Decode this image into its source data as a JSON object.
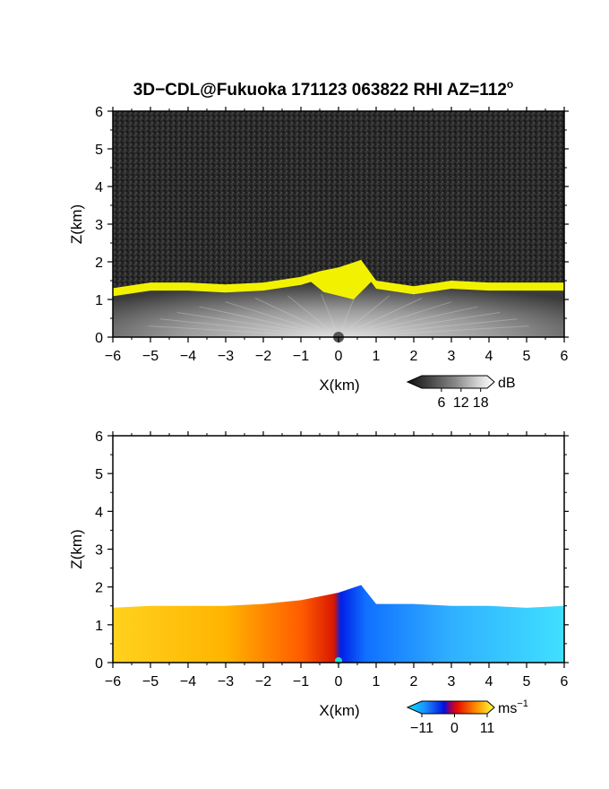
{
  "figure": {
    "title": "3D−CDL@Fukuoka 171123 063822 RHI AZ=112",
    "title_sup": "o"
  },
  "chart_data": [
    {
      "type": "heatmap",
      "variable": "reflectivity",
      "xlabel": "X(km)",
      "ylabel": "Z(km)",
      "xlim": [
        -6,
        6
      ],
      "ylim": [
        0,
        6
      ],
      "xticks": [
        "−6",
        "−5",
        "−4",
        "−3",
        "−2",
        "−1",
        "0",
        "1",
        "2",
        "3",
        "4",
        "5",
        "6"
      ],
      "yticks": [
        "0",
        "1",
        "2",
        "3",
        "4",
        "5",
        "6"
      ],
      "colorbar": {
        "unit": "dB",
        "ticks": [
          "6",
          "12",
          "18"
        ],
        "range": [
          0,
          20
        ]
      },
      "echo_top_km": [
        {
          "x": -6.0,
          "z": 1.3
        },
        {
          "x": -5.0,
          "z": 1.45
        },
        {
          "x": -4.0,
          "z": 1.45
        },
        {
          "x": -3.0,
          "z": 1.4
        },
        {
          "x": -2.0,
          "z": 1.45
        },
        {
          "x": -1.0,
          "z": 1.6
        },
        {
          "x": -0.5,
          "z": 1.75
        },
        {
          "x": 0.0,
          "z": 1.85
        },
        {
          "x": 0.3,
          "z": 1.95
        },
        {
          "x": 0.6,
          "z": 2.05
        },
        {
          "x": 1.0,
          "z": 1.5
        },
        {
          "x": 2.0,
          "z": 1.35
        },
        {
          "x": 3.0,
          "z": 1.5
        },
        {
          "x": 4.0,
          "z": 1.45
        },
        {
          "x": 5.0,
          "z": 1.45
        },
        {
          "x": 6.0,
          "z": 1.45
        }
      ]
    },
    {
      "type": "heatmap",
      "variable": "radial_velocity",
      "xlabel": "X(km)",
      "ylabel": "Z(km)",
      "xlim": [
        -6,
        6
      ],
      "ylim": [
        0,
        6
      ],
      "xticks": [
        "−6",
        "−5",
        "−4",
        "−3",
        "−2",
        "−1",
        "0",
        "1",
        "2",
        "3",
        "4",
        "5",
        "6"
      ],
      "yticks": [
        "0",
        "1",
        "2",
        "3",
        "4",
        "5",
        "6"
      ],
      "colorbar": {
        "unit": "ms",
        "unit_sup": "−1",
        "ticks": [
          "−11",
          "0",
          "11"
        ],
        "range": [
          -11,
          11
        ]
      },
      "sign_change_x_km": 0.0,
      "echo_top_km": [
        {
          "x": -6.0,
          "z": 1.45
        },
        {
          "x": -5.0,
          "z": 1.5
        },
        {
          "x": -4.0,
          "z": 1.5
        },
        {
          "x": -3.0,
          "z": 1.5
        },
        {
          "x": -2.0,
          "z": 1.55
        },
        {
          "x": -1.0,
          "z": 1.65
        },
        {
          "x": -0.5,
          "z": 1.75
        },
        {
          "x": 0.0,
          "z": 1.85
        },
        {
          "x": 0.3,
          "z": 1.95
        },
        {
          "x": 0.6,
          "z": 2.05
        },
        {
          "x": 1.0,
          "z": 1.55
        },
        {
          "x": 2.0,
          "z": 1.55
        },
        {
          "x": 3.0,
          "z": 1.5
        },
        {
          "x": 4.0,
          "z": 1.5
        },
        {
          "x": 5.0,
          "z": 1.45
        },
        {
          "x": 6.0,
          "z": 1.5
        }
      ]
    }
  ]
}
